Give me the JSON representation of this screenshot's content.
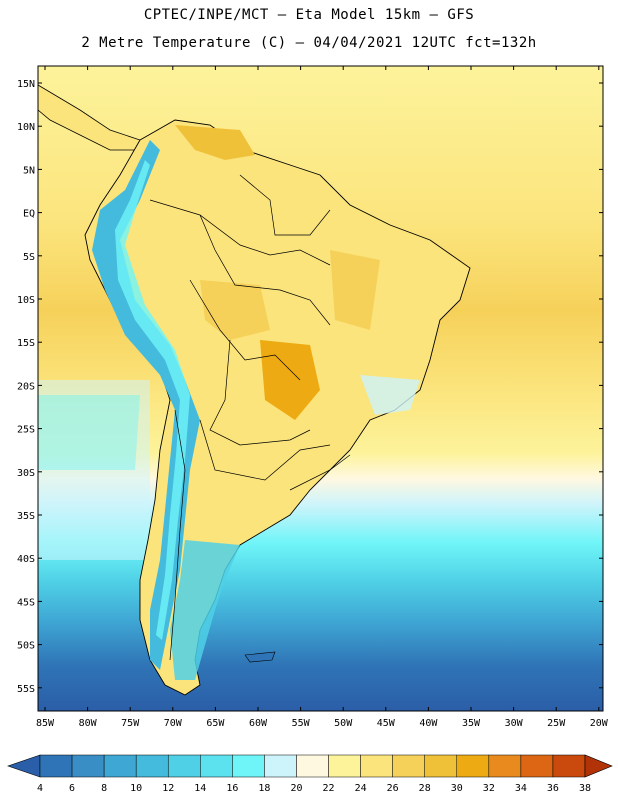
{
  "header": {
    "line1": "CPTEC/INPE/MCT –  Eta Model 15km – GFS",
    "line2": "2 Metre Temperature (C) – 04/04/2021 12UTC fct=132h"
  },
  "map": {
    "lat_labels": [
      "15N",
      "10N",
      "5N",
      "EQ",
      "5S",
      "10S",
      "15S",
      "20S",
      "25S",
      "30S",
      "35S",
      "40S",
      "45S",
      "50S",
      "55S"
    ],
    "lon_labels": [
      "85W",
      "80W",
      "75W",
      "70W",
      "65W",
      "60W",
      "55W",
      "50W",
      "45W",
      "40W",
      "35W",
      "30W",
      "25W",
      "20W"
    ]
  },
  "colorbar": {
    "levels": [
      "4",
      "6",
      "8",
      "10",
      "12",
      "14",
      "16",
      "18",
      "20",
      "22",
      "24",
      "26",
      "28",
      "30",
      "32",
      "34",
      "36",
      "38"
    ],
    "colors": [
      "#2b5ea8",
      "#2f74b6",
      "#3a8ec6",
      "#3fa7d4",
      "#44bbdd",
      "#4fd0e6",
      "#5ce2ef",
      "#6ff5f8",
      "#cdf4fb",
      "#fff8e1",
      "#fdf39b",
      "#fbe47c",
      "#f6d15a",
      "#efc139",
      "#eeaa12",
      "#e88a1e",
      "#dc6614",
      "#c94a0c",
      "#b23308"
    ]
  }
}
